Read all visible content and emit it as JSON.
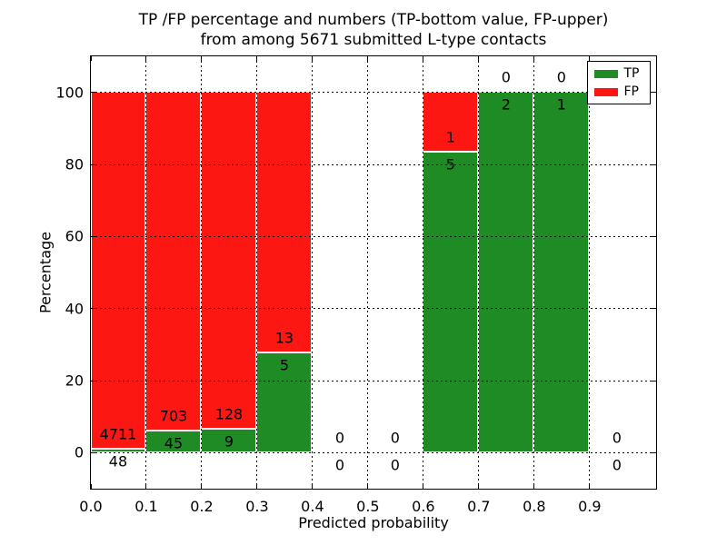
{
  "chart_data": {
    "type": "bar",
    "stacked": true,
    "title_line1": "TP /FP percentage and numbers (TP-bottom value, FP-upper)",
    "title_line2": "from among 5671 submitted L-type contacts",
    "total_submitted": 5671,
    "xlabel": "Predicted probability",
    "ylabel": "Percentage",
    "xlim": [
      0.0,
      1.02
    ],
    "ylim": [
      -10,
      110
    ],
    "x_tick_values": [
      0.0,
      0.1,
      0.2,
      0.3,
      0.4,
      0.5,
      0.6,
      0.7,
      0.8,
      0.9
    ],
    "x_tick_labels": [
      "0.0",
      "0.1",
      "0.2",
      "0.3",
      "0.4",
      "0.5",
      "0.6",
      "0.7",
      "0.8",
      "0.9"
    ],
    "y_tick_values": [
      0,
      20,
      40,
      60,
      80,
      100
    ],
    "y_tick_labels": [
      "0",
      "20",
      "40",
      "60",
      "80",
      "100"
    ],
    "grid": {
      "style": "dotted",
      "color": "#000000"
    },
    "colors": {
      "tp": "#1f8b24",
      "fp": "#fc1712",
      "bar_edge": "#ffffff",
      "background": "#ffffff",
      "text": "#000000"
    },
    "legend": {
      "position": "upper right",
      "entries": [
        {
          "label": "TP",
          "color_key": "tp"
        },
        {
          "label": "FP",
          "color_key": "fp"
        }
      ]
    },
    "bins": [
      {
        "x0": 0.0,
        "x1": 0.1,
        "tp": 48,
        "fp": 4711
      },
      {
        "x0": 0.1,
        "x1": 0.2,
        "tp": 45,
        "fp": 703
      },
      {
        "x0": 0.2,
        "x1": 0.3,
        "tp": 9,
        "fp": 128
      },
      {
        "x0": 0.3,
        "x1": 0.4,
        "tp": 5,
        "fp": 13
      },
      {
        "x0": 0.4,
        "x1": 0.5,
        "tp": 0,
        "fp": 0
      },
      {
        "x0": 0.5,
        "x1": 0.6,
        "tp": 0,
        "fp": 0
      },
      {
        "x0": 0.6,
        "x1": 0.7,
        "tp": 5,
        "fp": 1
      },
      {
        "x0": 0.7,
        "x1": 0.8,
        "tp": 2,
        "fp": 0
      },
      {
        "x0": 0.8,
        "x1": 0.9,
        "tp": 1,
        "fp": 0
      },
      {
        "x0": 0.9,
        "x1": 1.0,
        "tp": 0,
        "fp": 0
      }
    ]
  }
}
